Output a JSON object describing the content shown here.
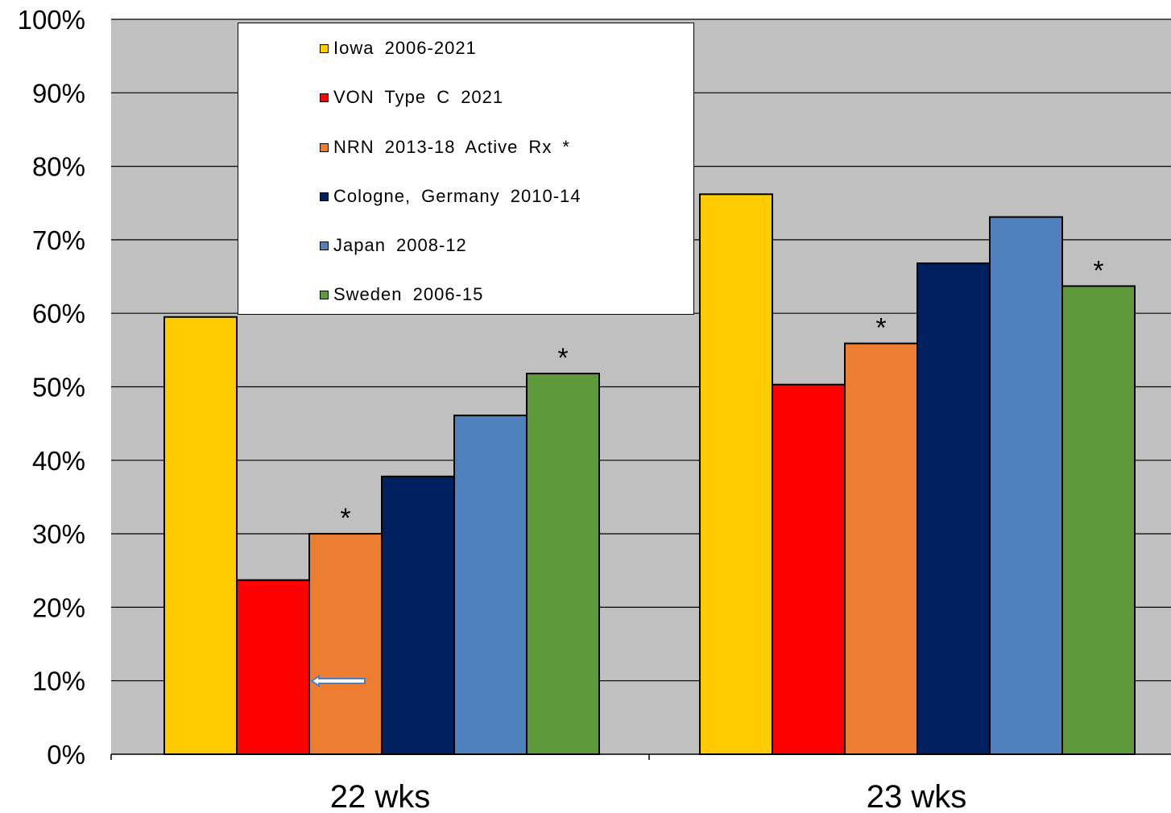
{
  "chart_data": {
    "type": "bar",
    "categories": [
      "22 wks",
      "23 wks"
    ],
    "series": [
      {
        "name": "Iowa  2006-2021",
        "values": [
          59.5,
          76.2
        ],
        "color": "#FFCC00",
        "marked": [
          false,
          false
        ]
      },
      {
        "name": "VON  Type  C  2021",
        "values": [
          23.7,
          50.3
        ],
        "color": "#FF0000",
        "marked": [
          false,
          false
        ]
      },
      {
        "name": "NRN 2013-18  Active  Rx  *",
        "values": [
          30.0,
          55.9
        ],
        "color": "#ED7D31",
        "marked": [
          true,
          true
        ]
      },
      {
        "name": "Cologne,  Germany  2010-14",
        "values": [
          37.8,
          66.8
        ],
        "color": "#002060",
        "marked": [
          false,
          false
        ]
      },
      {
        "name": "Japan  2008-12",
        "values": [
          46.1,
          73.1
        ],
        "color": "#4F81BD",
        "marked": [
          false,
          false
        ]
      },
      {
        "name": "Sweden  2006-15",
        "values": [
          51.8,
          63.7
        ],
        "color": "#5E9A3C",
        "marked": [
          true,
          true
        ]
      }
    ],
    "yticks": [
      "0%",
      "10%",
      "20%",
      "30%",
      "40%",
      "50%",
      "60%",
      "70%",
      "80%",
      "90%",
      "100%"
    ],
    "ylim": [
      0,
      100
    ],
    "grid": true,
    "legend_position": "top-left",
    "marker_symbol": "*",
    "plot_background": "#C0C0C0"
  }
}
